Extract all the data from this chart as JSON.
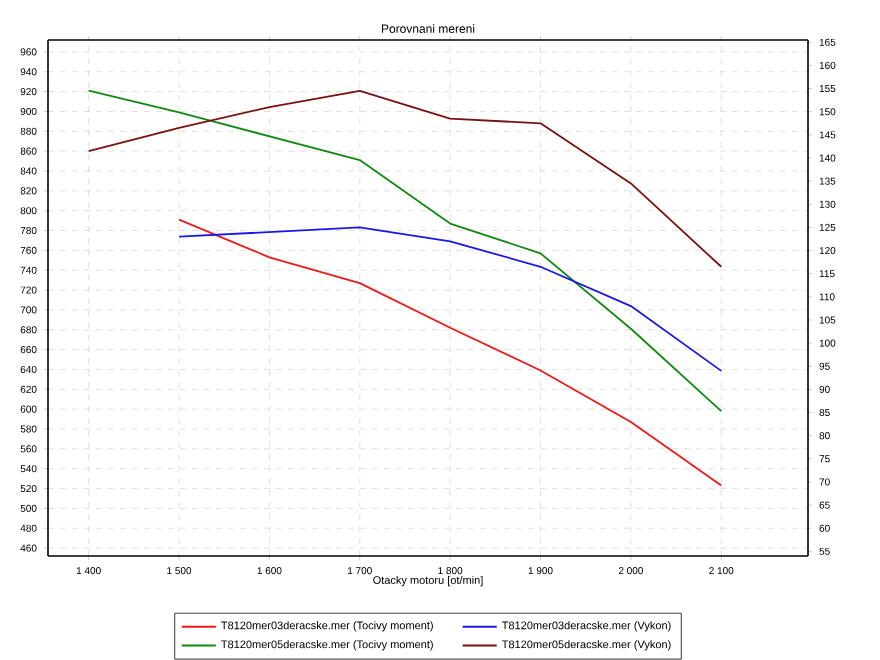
{
  "chart_data": {
    "type": "line",
    "title": "Porovnani mereni",
    "xlabel": "Otacky motoru [ot/min]",
    "x": [
      1400,
      1500,
      1600,
      1700,
      1800,
      1900,
      2000,
      2100
    ],
    "series": [
      {
        "name": "T8120mer03deracske.mer  (Tocivy moment)",
        "color": "#f01818",
        "values": [
          null,
          791,
          753,
          727,
          682,
          639,
          587,
          523
        ]
      },
      {
        "name": "T8120mer03deracske.mer  (Vykon)",
        "color": "#1818e8",
        "axis": "y2",
        "values": [
          null,
          123,
          124,
          125,
          122,
          116.5,
          108,
          94
        ]
      },
      {
        "name": "T8120mer05deracske.mer  (Tocivy moment)",
        "color": "#108a10",
        "values": [
          921,
          899,
          875,
          851,
          787,
          757,
          681,
          598
        ]
      },
      {
        "name": "T8120mer05deracske.mer  (Vykon)",
        "color": "#7a1010",
        "axis": "y2",
        "values": [
          141.5,
          146.5,
          151,
          154.5,
          148.5,
          147.5,
          134.5,
          116.5
        ]
      }
    ],
    "xlim": [
      1355,
      2196
    ],
    "xticks": [
      {
        "value": 1400,
        "label": "1 400"
      },
      {
        "value": 1500,
        "label": "1 500"
      },
      {
        "value": 1600,
        "label": "1 600"
      },
      {
        "value": 1700,
        "label": "1 700"
      },
      {
        "value": 1800,
        "label": "1 800"
      },
      {
        "value": 1900,
        "label": "1 900"
      },
      {
        "value": 2000,
        "label": "2 000"
      },
      {
        "value": 2100,
        "label": "2 100"
      }
    ],
    "ylim": [
      452,
      972
    ],
    "yticks": [
      460,
      480,
      500,
      520,
      540,
      560,
      580,
      600,
      620,
      640,
      660,
      680,
      700,
      720,
      740,
      760,
      780,
      800,
      820,
      840,
      860,
      880,
      900,
      920,
      940,
      960
    ],
    "y2lim": [
      54,
      165.5
    ],
    "y2ticks": [
      55,
      60,
      65,
      70,
      75,
      80,
      85,
      90,
      95,
      100,
      105,
      110,
      115,
      120,
      125,
      130,
      135,
      140,
      145,
      150,
      155,
      160,
      165
    ],
    "grid": true,
    "legend": "bottom",
    "marker": "none",
    "line_style": "solid"
  }
}
